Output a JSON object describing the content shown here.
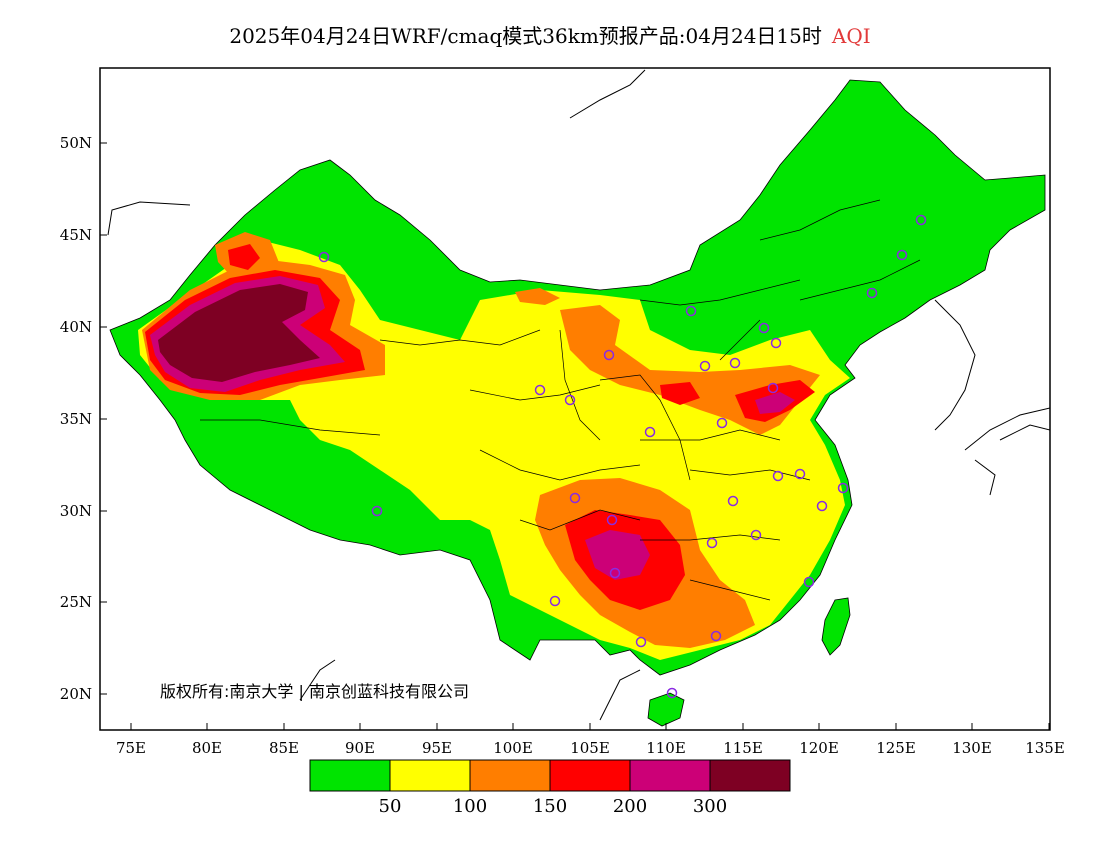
{
  "title": {
    "main": "2025年04月24日WRF/cmaq模式36km预报产品:04月24日15时",
    "variable": "AQI"
  },
  "copyright": "版权所有:南京大学 | 南京创蓝科技有限公司",
  "axes": {
    "lat_labels": [
      "50N",
      "45N",
      "40N",
      "35N",
      "30N",
      "25N",
      "20N"
    ],
    "lon_labels": [
      "75E",
      "80E",
      "85E",
      "90E",
      "95E",
      "100E",
      "105E",
      "110E",
      "115E",
      "120E",
      "125E",
      "130E",
      "135E"
    ]
  },
  "legend": {
    "colors": [
      "#00e400",
      "#ffff00",
      "#ff7e00",
      "#ff0000",
      "#cc0077",
      "#7e0023"
    ],
    "labels": [
      "50",
      "100",
      "150",
      "200",
      "300"
    ]
  },
  "colors": {
    "good": "#00e400",
    "moderate": "#ffff00",
    "sensitive": "#ff7e00",
    "unhealthy": "#ff0000",
    "very_unhealthy": "#cc0077",
    "hazardous": "#7e0023",
    "station_marker": "#8a2be2"
  }
}
